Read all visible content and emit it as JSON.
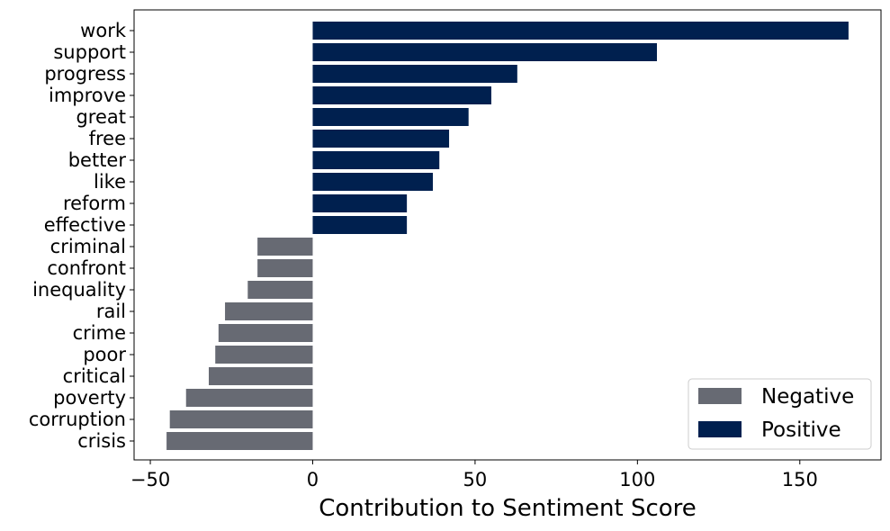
{
  "colors": {
    "positive": "#00204f",
    "negative": "#676a73",
    "frame": "#000000",
    "legend_border": "#cccccc"
  },
  "chart_data": {
    "type": "bar",
    "orientation": "horizontal",
    "xlabel": "Contribution to Sentiment Score",
    "ylabel": "",
    "title": "",
    "xlim": [
      -55,
      175
    ],
    "xticks": [
      -50,
      0,
      50,
      100,
      150
    ],
    "xtick_labels": [
      "−50",
      "0",
      "50",
      "100",
      "150"
    ],
    "grid": false,
    "legend_position": "lower-right",
    "legend": [
      {
        "label": "Negative",
        "series": "negative"
      },
      {
        "label": "Positive",
        "series": "positive"
      }
    ],
    "categories": [
      "work",
      "support",
      "progress",
      "improve",
      "great",
      "free",
      "better",
      "like",
      "reform",
      "effective",
      "criminal",
      "confront",
      "inequality",
      "rail",
      "crime",
      "poor",
      "critical",
      "poverty",
      "corruption",
      "crisis"
    ],
    "values": [
      165,
      106,
      63,
      55,
      48,
      42,
      39,
      37,
      29,
      29,
      -17,
      -17,
      -20,
      -27,
      -29,
      -30,
      -32,
      -39,
      -44,
      -45
    ],
    "sentiment": [
      "positive",
      "positive",
      "positive",
      "positive",
      "positive",
      "positive",
      "positive",
      "positive",
      "positive",
      "positive",
      "negative",
      "negative",
      "negative",
      "negative",
      "negative",
      "negative",
      "negative",
      "negative",
      "negative",
      "negative"
    ]
  }
}
